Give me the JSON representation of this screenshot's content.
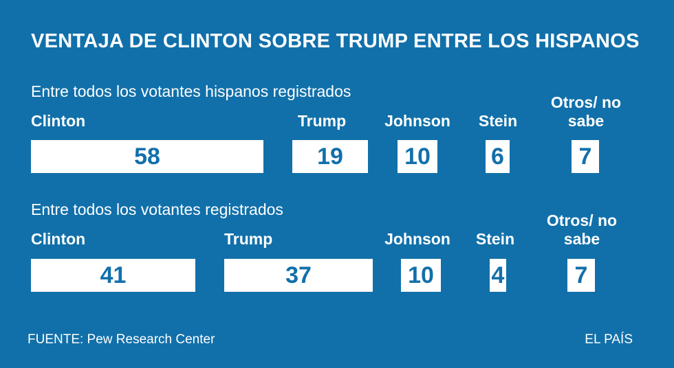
{
  "title": "VENTAJA DE CLINTON SOBRE TRUMP ENTRE LOS HISPANOS",
  "source": "FUENTE: Pew Research Center",
  "brand": "EL PAÍS",
  "colors": {
    "background": "#1170aa",
    "bar": "#ffffff"
  },
  "chart_data": [
    {
      "type": "bar",
      "title": "Entre todos los votantes hispanos registrados",
      "categories": [
        "Clinton",
        "Trump",
        "Johnson",
        "Stein",
        "Otros/ no sabe"
      ],
      "values": [
        58,
        19,
        10,
        6,
        7
      ]
    },
    {
      "type": "bar",
      "title": "Entre todos los votantes registrados",
      "categories": [
        "Clinton",
        "Trump",
        "Johnson",
        "Stein",
        "Otros/ no sabe"
      ],
      "values": [
        41,
        37,
        10,
        4,
        7
      ]
    }
  ]
}
